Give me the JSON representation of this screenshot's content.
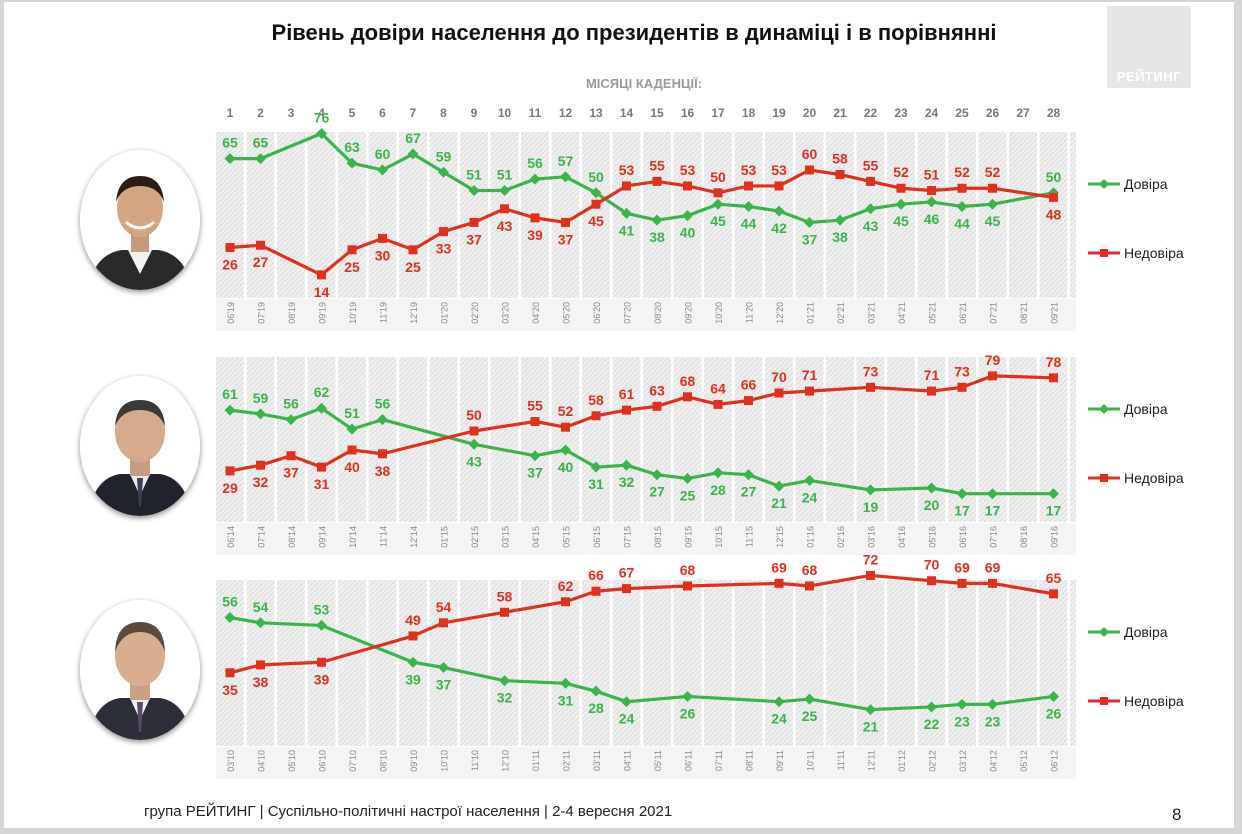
{
  "title": "Рівень довіри населення до президентів в динаміці і в порівнянні",
  "logo_text": "РЕЙТИНГ",
  "subtitle": "МІСЯЦІ КАДЕНЦІЇ:",
  "months": [
    "1",
    "2",
    "3",
    "4",
    "5",
    "6",
    "7",
    "8",
    "9",
    "10",
    "11",
    "12",
    "13",
    "14",
    "15",
    "16",
    "17",
    "18",
    "19",
    "20",
    "21",
    "22",
    "23",
    "24",
    "25",
    "26",
    "27",
    "28"
  ],
  "footer": "група РЕЙТИНГ | Суспільно-політичні настрої населення  | 2-4 вересня 2021",
  "page_number": "8",
  "colors": {
    "trust": "#3cb44b",
    "distrust": "#e03020",
    "legend_trust": "#3cb44b",
    "legend_distrust": "#e03020"
  },
  "chart_data": [
    {
      "type": "line",
      "x": [
        "06'19",
        "07'19",
        "08'19",
        "09'19",
        "10'19",
        "11'19",
        "12'19",
        "01'20",
        "02'20",
        "03'20",
        "04'20",
        "05'20",
        "06'20",
        "07'20",
        "08'20",
        "09'20",
        "10'20",
        "11'20",
        "12'20",
        "01'21",
        "02'21",
        "03'21",
        "04'21",
        "05'21",
        "06'21",
        "07'21",
        "08'21",
        "09'21"
      ],
      "series": [
        {
          "name": "Довіра",
          "values": [
            65,
            65,
            null,
            76,
            63,
            60,
            67,
            59,
            51,
            51,
            56,
            57,
            50,
            41,
            38,
            40,
            45,
            44,
            42,
            37,
            38,
            43,
            45,
            46,
            44,
            45,
            null,
            50
          ]
        },
        {
          "name": "Недовіра",
          "values": [
            26,
            27,
            null,
            14,
            25,
            30,
            25,
            33,
            37,
            43,
            39,
            37,
            45,
            53,
            55,
            53,
            50,
            53,
            53,
            60,
            58,
            55,
            52,
            51,
            52,
            52,
            null,
            48
          ]
        }
      ],
      "ylim": [
        10,
        80
      ]
    },
    {
      "type": "line",
      "x": [
        "06'14",
        "07'14",
        "08'14",
        "09'14",
        "10'14",
        "11'14",
        "12'14",
        "01'15",
        "02'15",
        "03'15",
        "04'15",
        "05'15",
        "06'15",
        "07'15",
        "08'15",
        "09'15",
        "10'15",
        "11'15",
        "12'15",
        "01'16",
        "02'16",
        "03'16",
        "04'16",
        "05'16",
        "06'16",
        "07'16",
        "08'16",
        "09'16"
      ],
      "series": [
        {
          "name": "Довіра",
          "values": [
            61,
            59,
            56,
            62,
            51,
            56,
            null,
            null,
            43,
            null,
            37,
            40,
            31,
            32,
            27,
            25,
            28,
            27,
            21,
            24,
            null,
            19,
            null,
            20,
            17,
            17,
            null,
            17
          ]
        },
        {
          "name": "Недовіра",
          "values": [
            29,
            32,
            37,
            31,
            40,
            38,
            null,
            null,
            50,
            null,
            55,
            52,
            58,
            61,
            63,
            68,
            64,
            66,
            70,
            71,
            null,
            73,
            null,
            71,
            73,
            79,
            null,
            78
          ]
        }
      ],
      "ylim": [
        10,
        82
      ]
    },
    {
      "type": "line",
      "x": [
        "03'10",
        "04'10",
        "05'10",
        "06'10",
        "07'10",
        "08'10",
        "09'10",
        "10'10",
        "11'10",
        "12'10",
        "01'11",
        "02'11",
        "03'11",
        "04'11",
        "05'11",
        "06'11",
        "07'11",
        "08'11",
        "09'11",
        "10'11",
        "11'11",
        "12'11",
        "01'12",
        "02'12",
        "03'12",
        "04'12",
        "05'12",
        "06'12"
      ],
      "series": [
        {
          "name": "Довіра",
          "values": [
            56,
            54,
            null,
            53,
            null,
            null,
            39,
            37,
            null,
            32,
            null,
            31,
            28,
            24,
            null,
            26,
            null,
            null,
            24,
            25,
            null,
            21,
            null,
            22,
            23,
            23,
            null,
            26
          ]
        },
        {
          "name": "Недовіра",
          "values": [
            35,
            38,
            null,
            39,
            null,
            null,
            49,
            54,
            null,
            58,
            null,
            62,
            66,
            67,
            null,
            68,
            null,
            null,
            69,
            68,
            null,
            72,
            null,
            70,
            69,
            69,
            null,
            65
          ]
        }
      ],
      "ylim": [
        14,
        78
      ]
    }
  ]
}
